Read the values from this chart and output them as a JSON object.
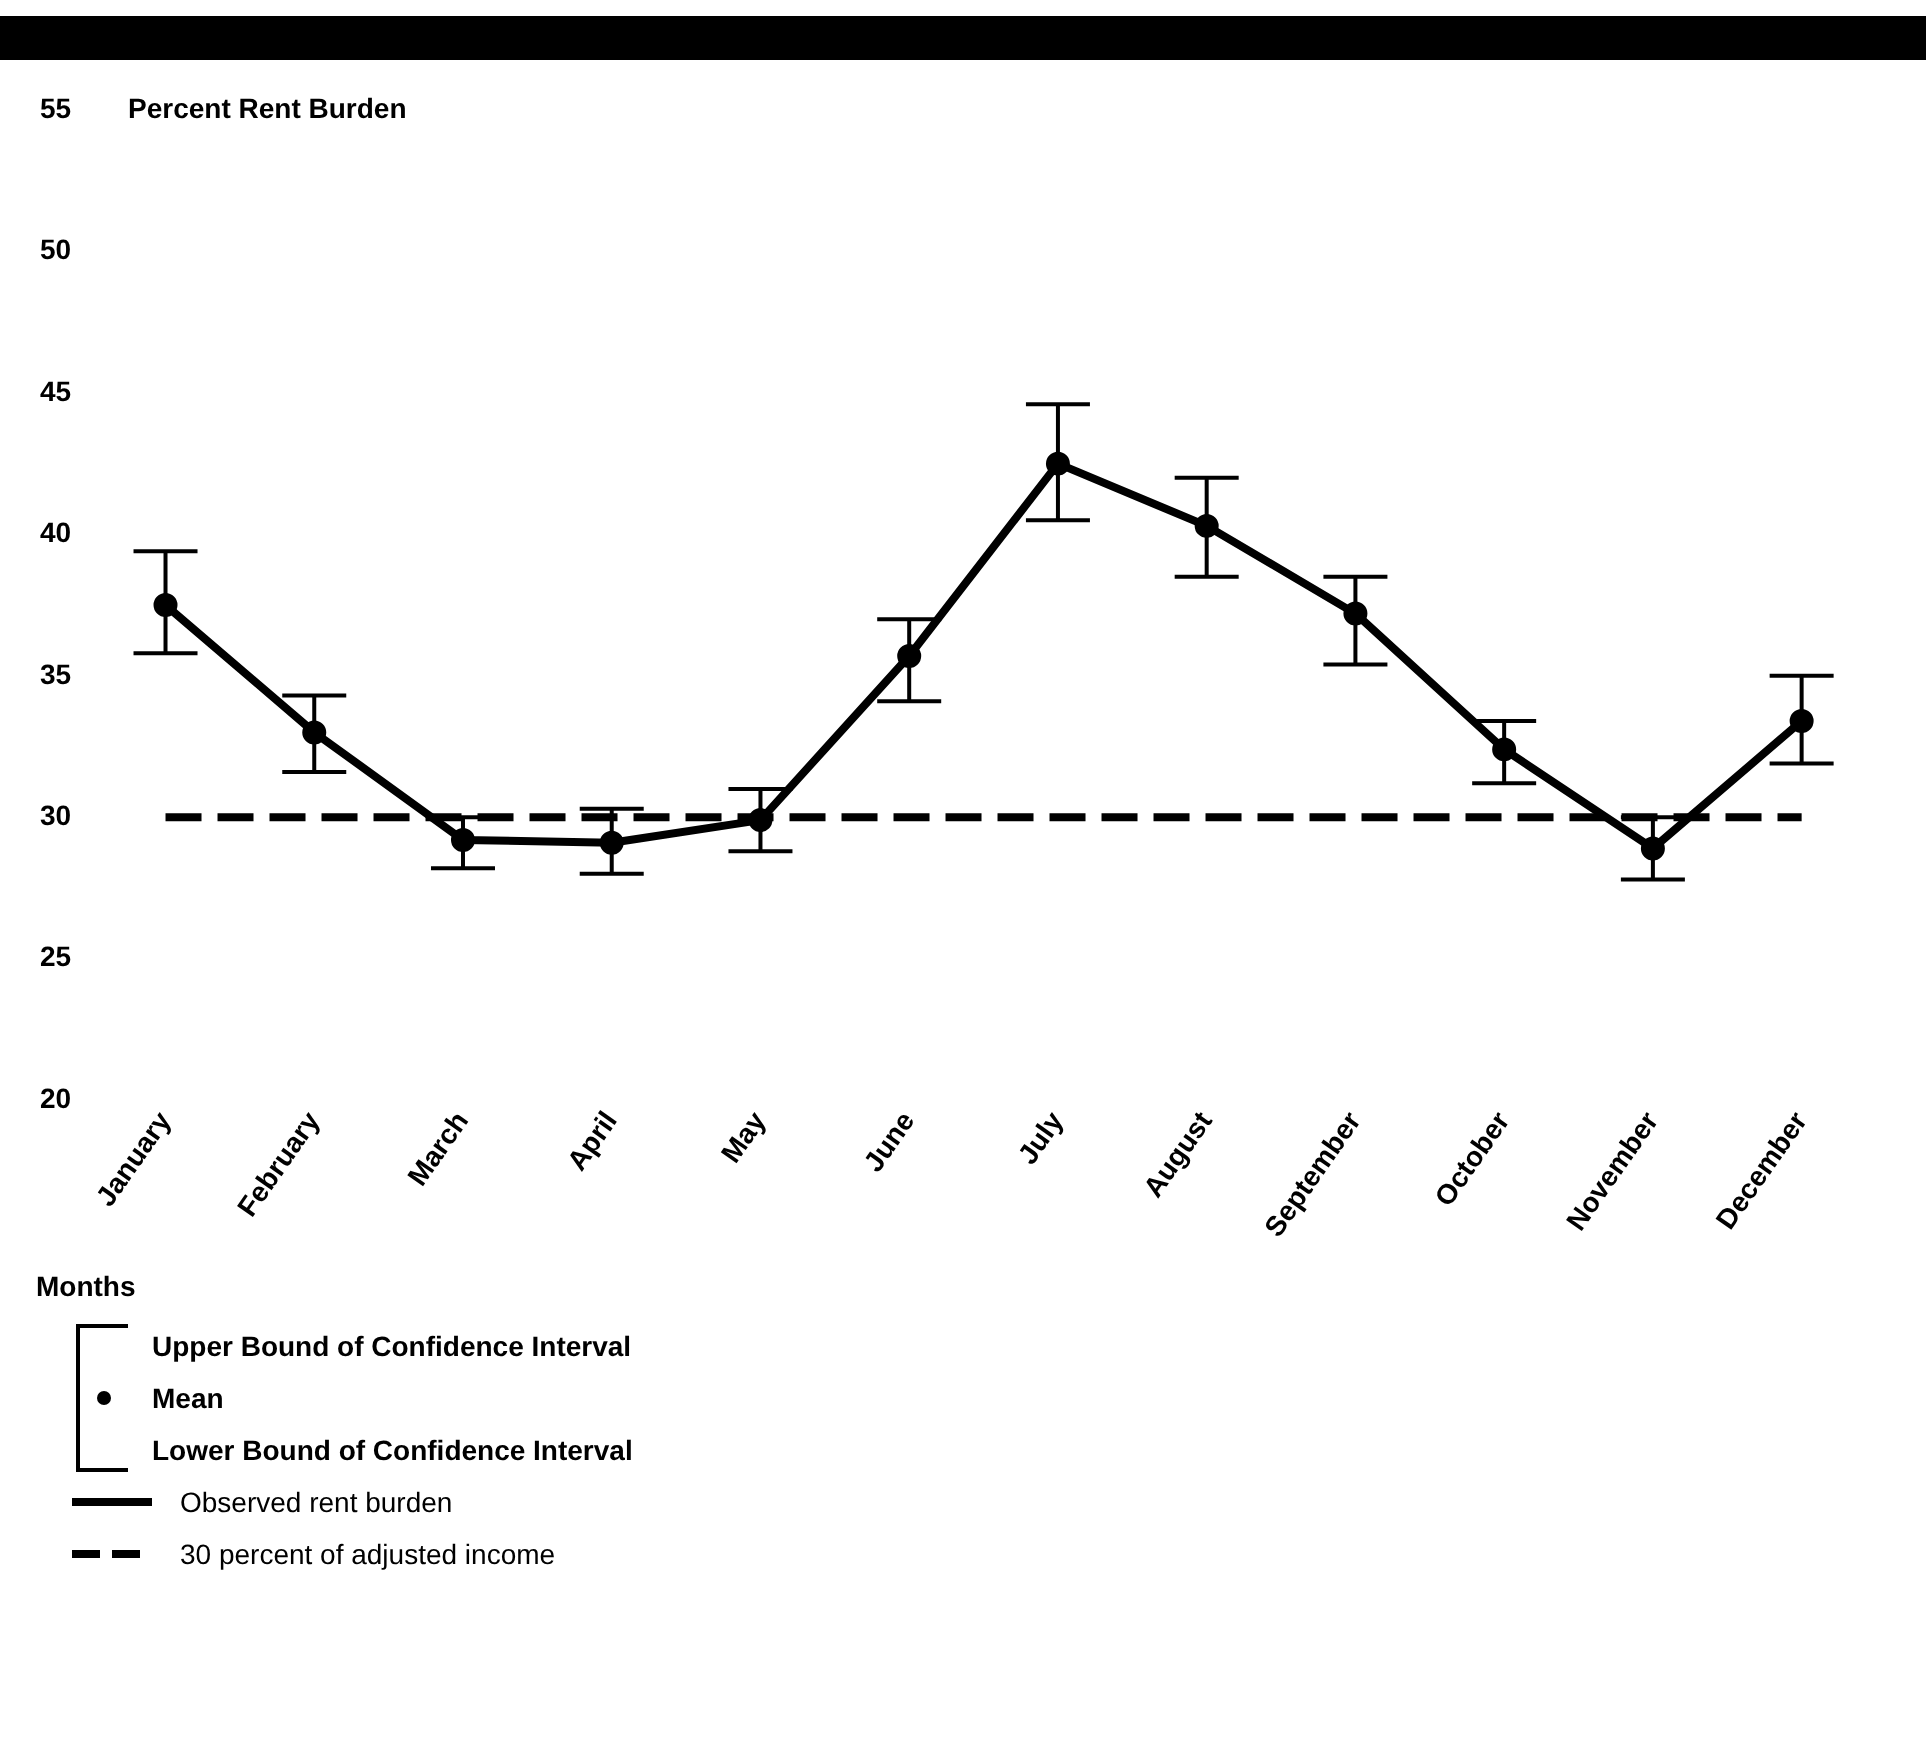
{
  "chart_data": {
    "type": "line",
    "ylabel": "Percent Rent Burden",
    "xlabel": "Months",
    "categories": [
      "January",
      "February",
      "March",
      "April",
      "May",
      "June",
      "July",
      "August",
      "September",
      "October",
      "November",
      "December"
    ],
    "series": [
      {
        "name": "Observed rent burden",
        "color": "#000000",
        "marker": "circle",
        "line_style": "solid",
        "values": [
          37.5,
          33.0,
          29.2,
          29.1,
          29.9,
          35.7,
          42.5,
          40.3,
          37.2,
          32.4,
          28.9,
          33.4
        ],
        "errors": [
          [
            35.8,
            39.4
          ],
          [
            31.6,
            34.3
          ],
          [
            28.2,
            30.0
          ],
          [
            28.0,
            30.3
          ],
          [
            28.8,
            31.0
          ],
          [
            34.1,
            37.0
          ],
          [
            40.5,
            44.6
          ],
          [
            38.5,
            42.0
          ],
          [
            35.4,
            38.5
          ],
          [
            31.2,
            33.4
          ],
          [
            27.8,
            30.0
          ],
          [
            31.9,
            35.0
          ]
        ]
      },
      {
        "name": "30 percent of adjusted income",
        "color": "#000000",
        "marker": "none",
        "line_style": "dashed",
        "values": [
          30,
          30,
          30,
          30,
          30,
          30,
          30,
          30,
          30,
          30,
          30,
          30
        ]
      }
    ],
    "annotations": [
      "Upper Bound of Confidence Interval",
      "Mean",
      "Lower Bound of Confidence Interval"
    ],
    "ylim": [
      20,
      55
    ],
    "yticks": [
      20,
      25,
      30,
      35,
      40,
      45,
      50,
      55
    ],
    "grid": false,
    "legend": "bottom left"
  }
}
